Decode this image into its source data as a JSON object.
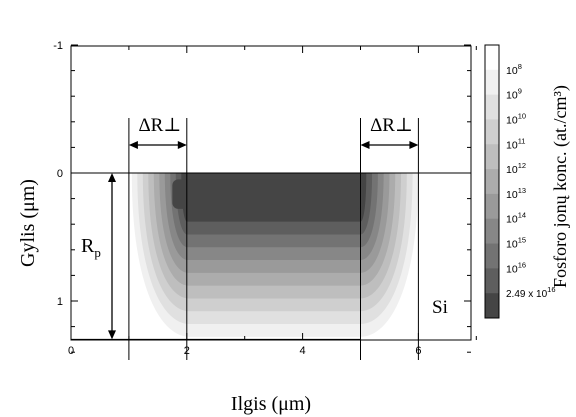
{
  "chart_data": {
    "type": "heatmap",
    "xlabel": "Ilgis (μm)",
    "ylabel": "Gylis (μm)",
    "x_ticks": [
      "0",
      "2",
      "4",
      "6"
    ],
    "y_ticks": [
      "-1",
      "0",
      "1"
    ],
    "xlim": [
      0,
      7
    ],
    "ylim": [
      -1,
      1.5
    ],
    "y_inverted": true,
    "colorbar": {
      "label": "Fosforo jonų konc. (at./cm³)",
      "levels": [
        {
          "label": "10",
          "exp": "8"
        },
        {
          "label": "10",
          "exp": "9"
        },
        {
          "label": "10",
          "exp": "10"
        },
        {
          "label": "10",
          "exp": "11"
        },
        {
          "label": "10",
          "exp": "12"
        },
        {
          "label": "10",
          "exp": "13"
        },
        {
          "label": "10",
          "exp": "14"
        },
        {
          "label": "10",
          "exp": "15"
        },
        {
          "label": "10",
          "exp": "16"
        },
        {
          "label": "2.49 x 10",
          "exp": "16"
        }
      ],
      "colors": [
        "#ffffff",
        "#f0f0f0",
        "#e0e0e0",
        "#cfcfcf",
        "#bebebe",
        "#acacac",
        "#9a9a9a",
        "#878787",
        "#737373",
        "#5e5e5e",
        "#454545"
      ]
    },
    "annotations": {
      "dr_left": "ΔR⊥",
      "dr_right": "ΔR⊥",
      "rp": "R",
      "rp_sub": "p",
      "material": "Si"
    },
    "mask_window": {
      "x_start": 2,
      "x_end": 5
    },
    "lateral_spread": {
      "left_edge": 1,
      "right_edge": 6
    },
    "projected_range": 1.3,
    "surface_depth": 0,
    "contour_levels_depth": [
      0.2,
      0.35,
      0.5,
      0.6,
      0.7,
      0.8,
      0.9,
      1.0,
      1.1,
      1.2
    ]
  }
}
